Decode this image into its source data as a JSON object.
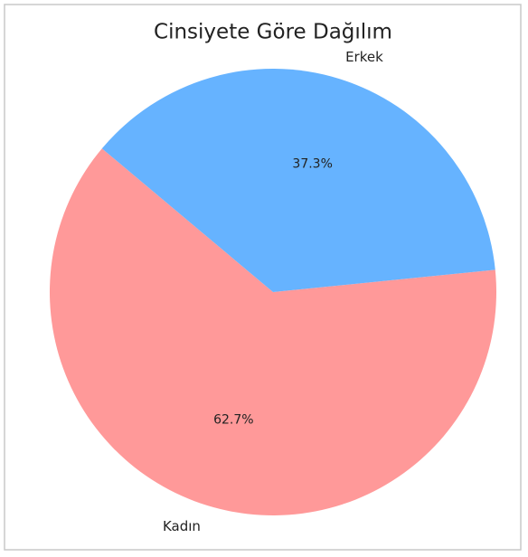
{
  "chart_data": {
    "type": "pie",
    "title": "Cinsiyete Göre Dağılım",
    "categories": [
      "Kadın",
      "Erkek"
    ],
    "values": [
      62.7,
      37.3
    ],
    "value_labels": [
      "62.7%",
      "37.3%"
    ],
    "colors": [
      "#ff9999",
      "#66b3ff"
    ],
    "startangle": 140
  }
}
